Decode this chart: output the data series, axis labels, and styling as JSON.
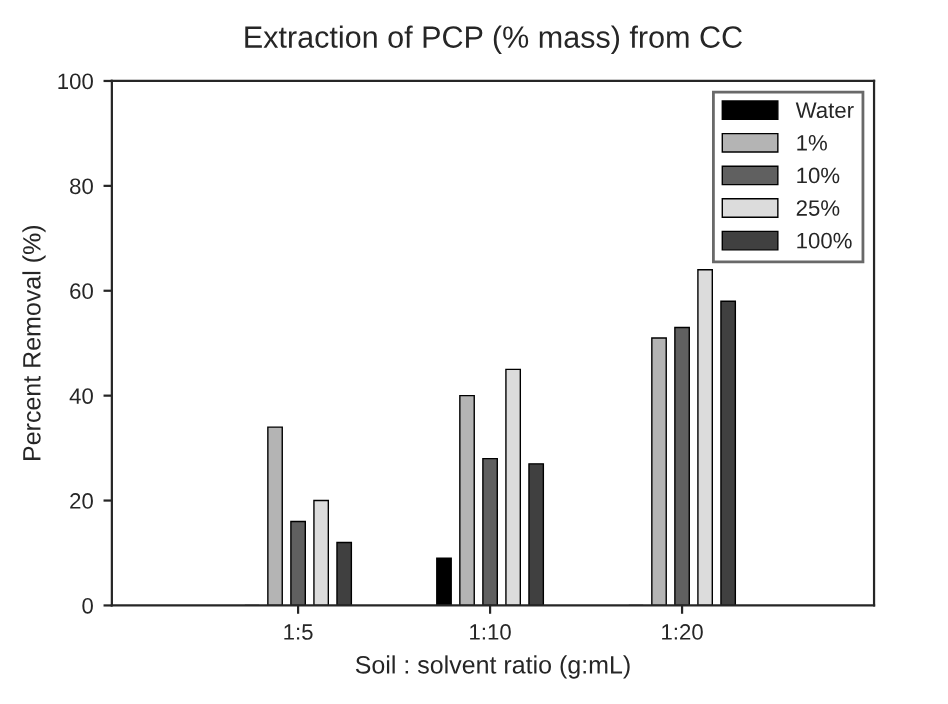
{
  "chart_data": {
    "type": "bar",
    "title": "Extraction of PCP (% mass) from CC",
    "xlabel": "Soil : solvent ratio (g:mL)",
    "ylabel": "Percent Removal (%)",
    "categories": [
      "1:5",
      "1:10",
      "1:20"
    ],
    "series": [
      {
        "name": "Water",
        "color": "#000000",
        "values": [
          0,
          9,
          0
        ]
      },
      {
        "name": "1%",
        "color": "#b4b4b4",
        "values": [
          34,
          40,
          51
        ]
      },
      {
        "name": "10%",
        "color": "#606060",
        "values": [
          16,
          28,
          53
        ]
      },
      {
        "name": "25%",
        "color": "#dcdcdc",
        "values": [
          20,
          45,
          64
        ]
      },
      {
        "name": "100%",
        "color": "#404040",
        "values": [
          12,
          27,
          58
        ]
      }
    ],
    "ylim": [
      0,
      100
    ],
    "yticks": [
      0,
      20,
      40,
      60,
      80,
      100
    ],
    "grid": false,
    "legend": "top right"
  }
}
